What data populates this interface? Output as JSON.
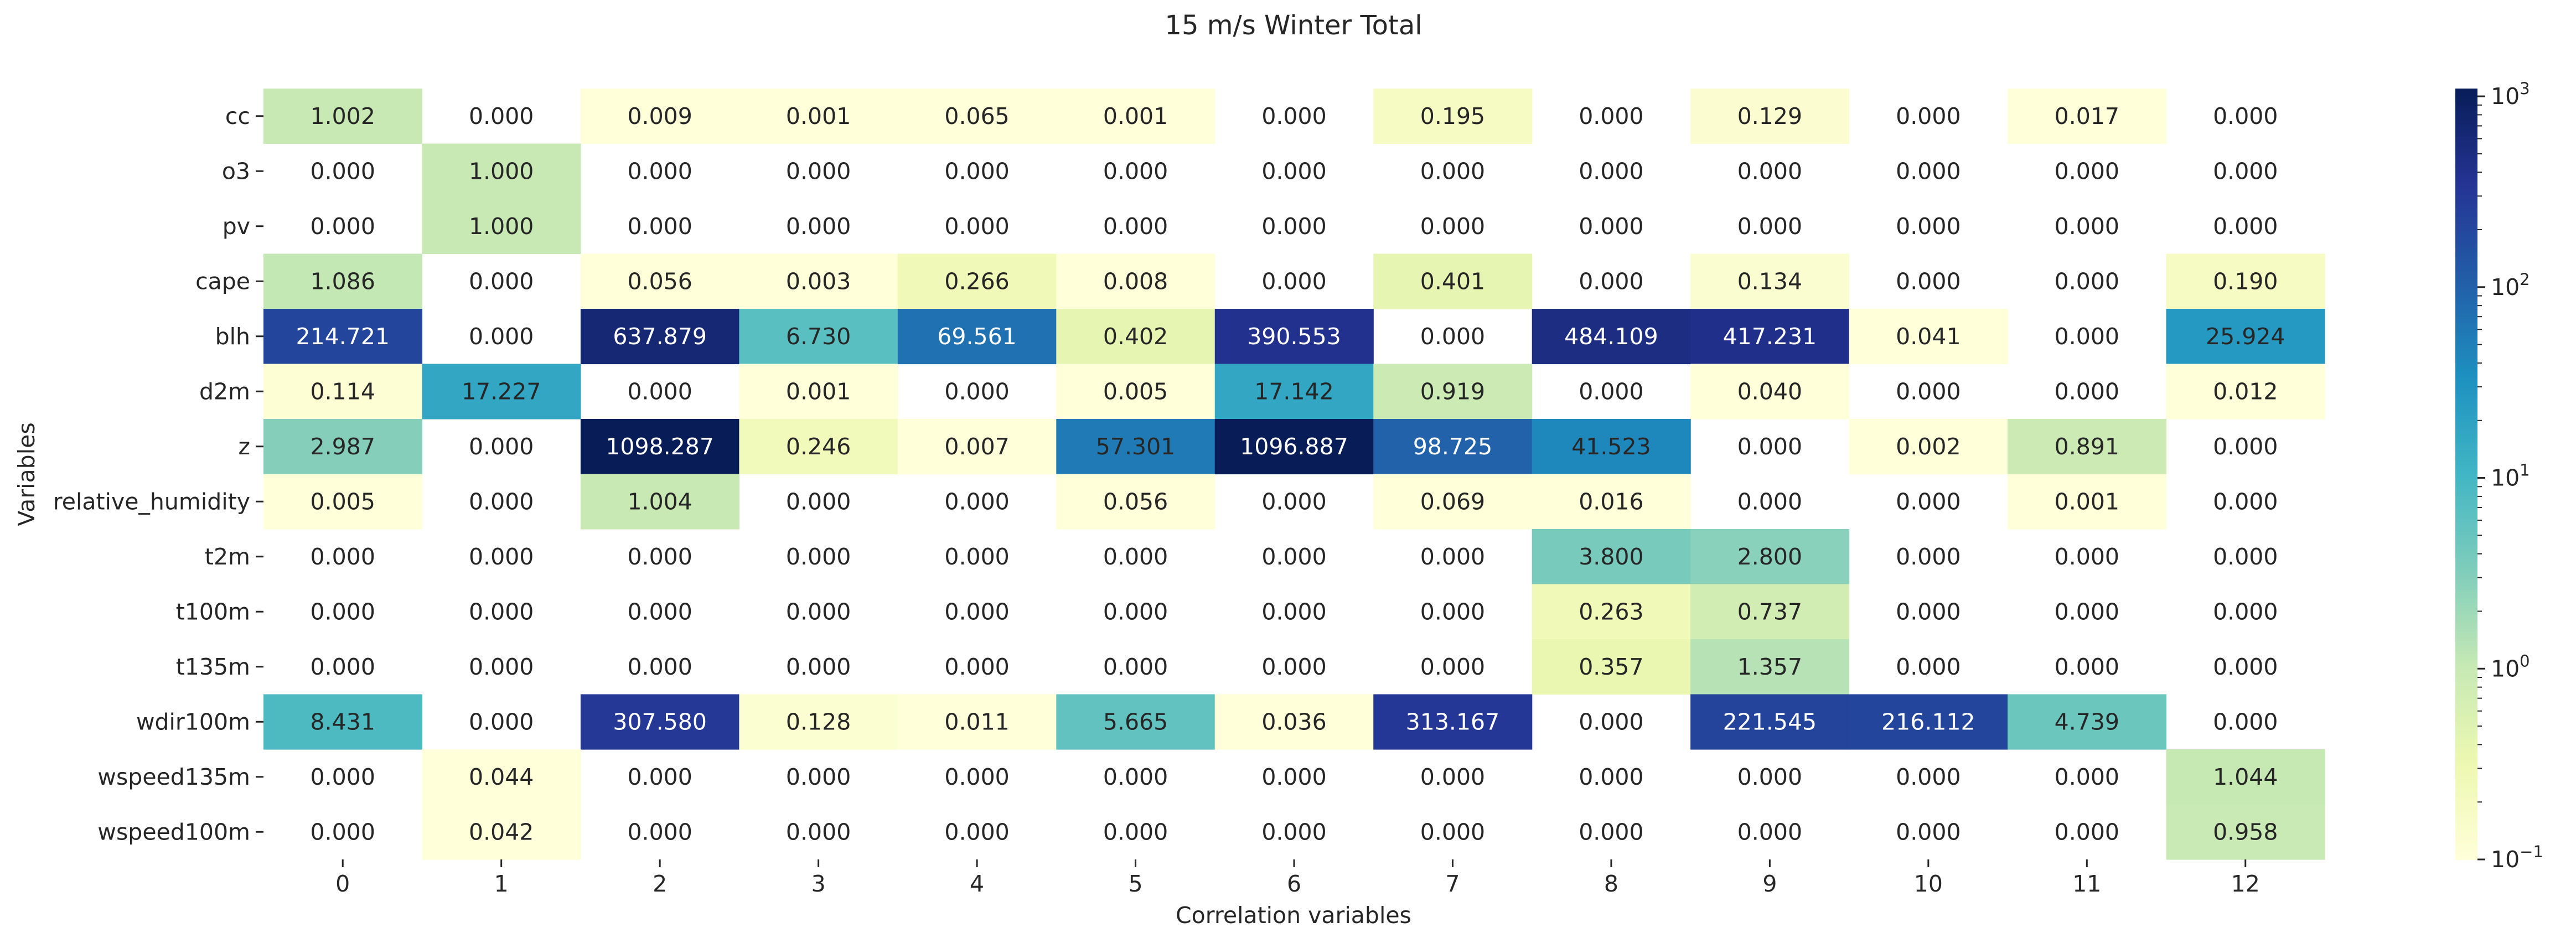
{
  "chart_data": {
    "type": "heatmap",
    "title": "15 m/s Winter Total",
    "xlabel": "Correlation variables",
    "ylabel": "Variables",
    "x_categories": [
      "0",
      "1",
      "2",
      "3",
      "4",
      "5",
      "6",
      "7",
      "8",
      "9",
      "10",
      "11",
      "12"
    ],
    "y_categories": [
      "cc",
      "o3",
      "pv",
      "cape",
      "blh",
      "d2m",
      "z",
      "relative_humidity",
      "t2m",
      "t100m",
      "t135m",
      "wdir100m",
      "wspeed135m",
      "wspeed100m"
    ],
    "values": [
      [
        1.002,
        0.0,
        0.009,
        0.001,
        0.065,
        0.001,
        0.0,
        0.195,
        0.0,
        0.129,
        0.0,
        0.017,
        0.0
      ],
      [
        0.0,
        1.0,
        0.0,
        0.0,
        0.0,
        0.0,
        0.0,
        0.0,
        0.0,
        0.0,
        0.0,
        0.0,
        0.0
      ],
      [
        0.0,
        1.0,
        0.0,
        0.0,
        0.0,
        0.0,
        0.0,
        0.0,
        0.0,
        0.0,
        0.0,
        0.0,
        0.0
      ],
      [
        1.086,
        0.0,
        0.056,
        0.003,
        0.266,
        0.008,
        0.0,
        0.401,
        0.0,
        0.134,
        0.0,
        0.0,
        0.19
      ],
      [
        214.721,
        0.0,
        637.879,
        6.73,
        69.561,
        0.402,
        390.553,
        0.0,
        484.109,
        417.231,
        0.041,
        0.0,
        25.924
      ],
      [
        0.114,
        17.227,
        0.0,
        0.001,
        0.0,
        0.005,
        17.142,
        0.919,
        0.0,
        0.04,
        0.0,
        0.0,
        0.012
      ],
      [
        2.987,
        0.0,
        1098.287,
        0.246,
        0.007,
        57.301,
        1096.887,
        98.725,
        41.523,
        0.0,
        0.002,
        0.891,
        0.0
      ],
      [
        0.005,
        0.0,
        1.004,
        0.0,
        0.0,
        0.056,
        0.0,
        0.069,
        0.016,
        0.0,
        0.0,
        0.001,
        0.0
      ],
      [
        0.0,
        0.0,
        0.0,
        0.0,
        0.0,
        0.0,
        0.0,
        0.0,
        3.8,
        2.8,
        0.0,
        0.0,
        0.0
      ],
      [
        0.0,
        0.0,
        0.0,
        0.0,
        0.0,
        0.0,
        0.0,
        0.0,
        0.263,
        0.737,
        0.0,
        0.0,
        0.0
      ],
      [
        0.0,
        0.0,
        0.0,
        0.0,
        0.0,
        0.0,
        0.0,
        0.0,
        0.357,
        1.357,
        0.0,
        0.0,
        0.0
      ],
      [
        8.431,
        0.0,
        307.58,
        0.128,
        0.011,
        5.665,
        0.036,
        313.167,
        0.0,
        221.545,
        216.112,
        4.739,
        0.0
      ],
      [
        0.0,
        0.044,
        0.0,
        0.0,
        0.0,
        0.0,
        0.0,
        0.0,
        0.0,
        0.0,
        0.0,
        0.0,
        1.044
      ],
      [
        0.0,
        0.042,
        0.0,
        0.0,
        0.0,
        0.0,
        0.0,
        0.0,
        0.0,
        0.0,
        0.0,
        0.0,
        0.958
      ]
    ],
    "value_format": "3 decimals",
    "color_scale": {
      "colormap": "YlGnBu",
      "scale": "log",
      "vmin": 0.1,
      "vmax": 1098.287,
      "zero_cells": "blank (masked)"
    },
    "colorbar": {
      "ticks": [
        {
          "value": 0.1,
          "base": "10",
          "exp": "−1"
        },
        {
          "value": 1,
          "base": "10",
          "exp": "0"
        },
        {
          "value": 10,
          "base": "10",
          "exp": "1"
        },
        {
          "value": 100,
          "base": "10",
          "exp": "2"
        },
        {
          "value": 1000,
          "base": "10",
          "exp": "3"
        }
      ],
      "placement": "right"
    },
    "grid": false,
    "colors": {
      "background": "#ffffff",
      "text_dark": "#262626",
      "text_light": "#ffffff"
    }
  }
}
